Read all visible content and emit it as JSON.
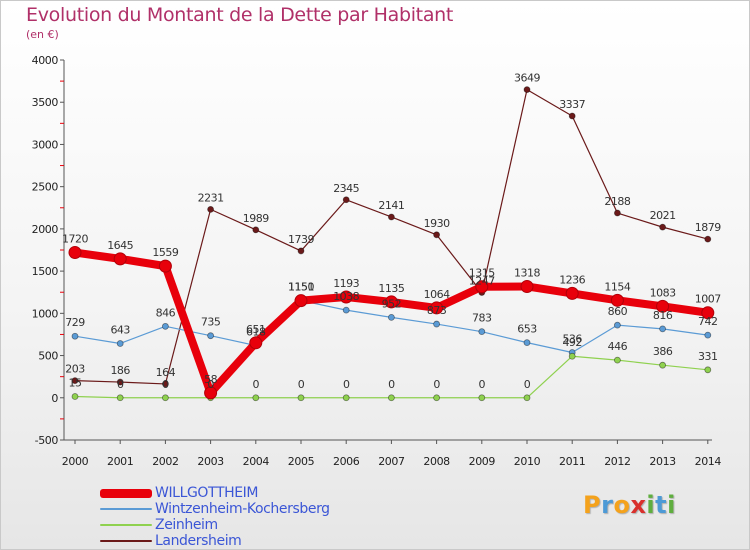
{
  "title": "Evolution du Montant de la Dette par Habitant",
  "subtitle": "(en €)",
  "brand": "Proxiti",
  "brand_colors": [
    "#f4a21c",
    "#4d9ad6",
    "#f4a21c",
    "#d9302c",
    "#5fae3f",
    "#4d9ad6",
    "#5fae3f"
  ],
  "chart_data": {
    "type": "line",
    "title": "Evolution du Montant de la Dette par Habitant",
    "subtitle": "(en €)",
    "xlabel": "",
    "ylabel": "",
    "ylim": [
      -500,
      4000
    ],
    "yticks": [
      -500,
      0,
      500,
      1000,
      1500,
      2000,
      2500,
      3000,
      3500,
      4000
    ],
    "grid": false,
    "legend_position": "bottom-left",
    "x": [
      "2000",
      "2001",
      "2002",
      "2003",
      "2004",
      "2005",
      "2006",
      "2007",
      "2008",
      "2009",
      "2010",
      "2011",
      "2012",
      "2013",
      "2014"
    ],
    "series": [
      {
        "name": "WILLGOTTHEIM",
        "color": "#e8000b",
        "values": [
          1720,
          1645,
          1559,
          58,
          651,
          1150,
          1193,
          1135,
          1064,
          1315,
          1318,
          1236,
          1154,
          1083,
          1007
        ],
        "labels": [
          "1720",
          "1645",
          "1559",
          "58",
          "651",
          "1150",
          "1193",
          "1135",
          "1064",
          "1315",
          "1318",
          "1236",
          "1154",
          "1083",
          "1007"
        ]
      },
      {
        "name": "Wintzenheim-Kochersberg",
        "color": "#5b9bd5",
        "values": [
          729,
          643,
          846,
          735,
          618,
          1151,
          1038,
          952,
          873,
          783,
          653,
          536,
          860,
          816,
          742
        ],
        "labels": [
          "729",
          "643",
          "846",
          "735",
          "618",
          "1151",
          "1038",
          "952",
          "873",
          "783",
          "653",
          "536",
          "860",
          "816",
          "742"
        ]
      },
      {
        "name": "Zeinheim",
        "color": "#8fd14f",
        "values": [
          15,
          0,
          0,
          0,
          0,
          0,
          0,
          0,
          0,
          0,
          0,
          492,
          446,
          386,
          331
        ],
        "labels": [
          "15",
          "0",
          "0",
          "0",
          "0",
          "0",
          "0",
          "0",
          "0",
          "0",
          "0",
          "492",
          "446",
          "386",
          "331"
        ]
      },
      {
        "name": "Landersheim",
        "color": "#6b1a1a",
        "values": [
          203,
          186,
          164,
          2231,
          1989,
          1739,
          2345,
          2141,
          1930,
          1247,
          3649,
          3337,
          2188,
          2021,
          1879
        ],
        "labels": [
          "203",
          "186",
          "164",
          "2231",
          "1989",
          "1739",
          "2345",
          "2141",
          "1930",
          "1247",
          "3649",
          "3337",
          "2188",
          "2021",
          "1879"
        ]
      }
    ]
  }
}
